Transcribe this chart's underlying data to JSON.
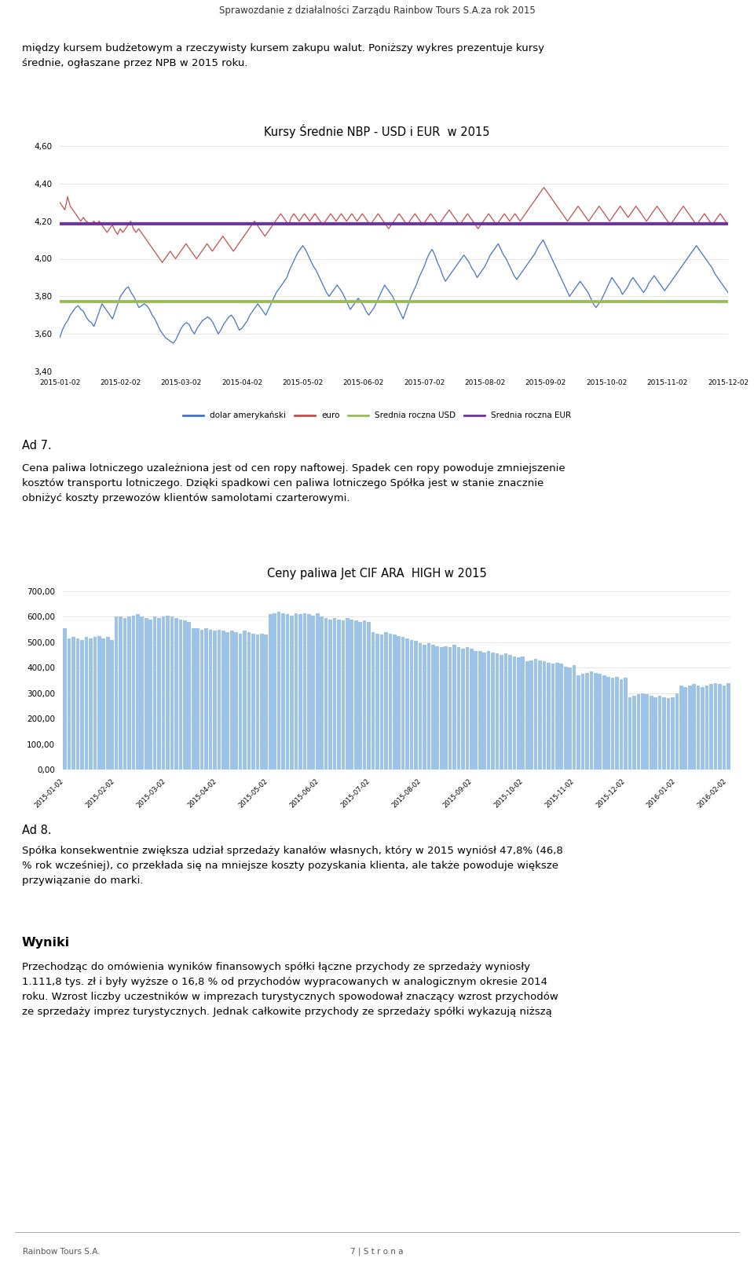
{
  "page_title": "Sprawozdanie z działalności Zarządu Rainbow Tours S.A.za rok 2015",
  "header_bar_color": "#7B2D2D",
  "text1": "między kursem budżetowym a rzeczywisty kursem zakupu walut. Poniższy wykres prezentuje kursy\nśrednie, ogłaszane przez NPB w 2015 roku.",
  "chart1_title": "Kursy Średnie NBP - USD i EUR  w 2015",
  "chart1_ylim": [
    3.4,
    4.6
  ],
  "chart1_yticks": [
    3.4,
    3.6,
    3.8,
    4.0,
    4.2,
    4.4,
    4.6
  ],
  "chart1_xlabels": [
    "2015-01-02",
    "2015-02-02",
    "2015-03-02",
    "2015-04-02",
    "2015-05-02",
    "2015-06-02",
    "2015-07-02",
    "2015-08-02",
    "2015-09-02",
    "2015-10-02",
    "2015-11-02",
    "2015-12-02"
  ],
  "usd_color": "#4472C4",
  "eur_color": "#C0504D",
  "usd_avg_color": "#9BBB59",
  "eur_avg_color": "#7030A0",
  "usd_avg": 3.773,
  "eur_avg": 4.184,
  "usd_values": [
    3.58,
    3.62,
    3.65,
    3.67,
    3.7,
    3.72,
    3.74,
    3.75,
    3.73,
    3.72,
    3.69,
    3.67,
    3.66,
    3.64,
    3.68,
    3.72,
    3.76,
    3.74,
    3.72,
    3.7,
    3.68,
    3.72,
    3.76,
    3.8,
    3.82,
    3.84,
    3.85,
    3.82,
    3.8,
    3.77,
    3.74,
    3.75,
    3.76,
    3.75,
    3.73,
    3.7,
    3.68,
    3.65,
    3.62,
    3.6,
    3.58,
    3.57,
    3.56,
    3.55,
    3.57,
    3.6,
    3.63,
    3.65,
    3.66,
    3.65,
    3.62,
    3.6,
    3.63,
    3.65,
    3.67,
    3.68,
    3.69,
    3.68,
    3.66,
    3.63,
    3.6,
    3.62,
    3.65,
    3.67,
    3.69,
    3.7,
    3.68,
    3.65,
    3.62,
    3.63,
    3.65,
    3.67,
    3.7,
    3.72,
    3.74,
    3.76,
    3.74,
    3.72,
    3.7,
    3.73,
    3.76,
    3.79,
    3.82,
    3.84,
    3.86,
    3.88,
    3.9,
    3.94,
    3.97,
    4.0,
    4.03,
    4.05,
    4.07,
    4.05,
    4.02,
    3.99,
    3.96,
    3.94,
    3.91,
    3.88,
    3.85,
    3.82,
    3.8,
    3.82,
    3.84,
    3.86,
    3.84,
    3.82,
    3.79,
    3.76,
    3.73,
    3.75,
    3.77,
    3.79,
    3.77,
    3.75,
    3.72,
    3.7,
    3.72,
    3.74,
    3.77,
    3.8,
    3.83,
    3.86,
    3.84,
    3.82,
    3.8,
    3.77,
    3.74,
    3.71,
    3.68,
    3.72,
    3.76,
    3.8,
    3.83,
    3.86,
    3.9,
    3.93,
    3.96,
    4.0,
    4.03,
    4.05,
    4.02,
    3.98,
    3.95,
    3.91,
    3.88,
    3.9,
    3.92,
    3.94,
    3.96,
    3.98,
    4.0,
    4.02,
    4.0,
    3.98,
    3.95,
    3.93,
    3.9,
    3.92,
    3.94,
    3.96,
    3.99,
    4.02,
    4.04,
    4.06,
    4.08,
    4.05,
    4.02,
    4.0,
    3.97,
    3.94,
    3.91,
    3.89,
    3.91,
    3.93,
    3.95,
    3.97,
    3.99,
    4.01,
    4.03,
    4.06,
    4.08,
    4.1,
    4.07,
    4.04,
    4.01,
    3.98,
    3.95,
    3.92,
    3.89,
    3.86,
    3.83,
    3.8,
    3.82,
    3.84,
    3.86,
    3.88,
    3.86,
    3.84,
    3.82,
    3.79,
    3.76,
    3.74,
    3.76,
    3.78,
    3.81,
    3.84,
    3.87,
    3.9,
    3.88,
    3.86,
    3.84,
    3.81,
    3.83,
    3.85,
    3.88,
    3.9,
    3.88,
    3.86,
    3.84,
    3.82,
    3.84,
    3.87,
    3.89,
    3.91,
    3.89,
    3.87,
    3.85,
    3.83,
    3.85,
    3.87,
    3.89,
    3.91,
    3.93,
    3.95,
    3.97,
    3.99,
    4.01,
    4.03,
    4.05,
    4.07,
    4.05,
    4.03,
    4.01,
    3.99,
    3.97,
    3.95,
    3.92,
    3.9,
    3.88,
    3.86,
    3.84,
    3.82
  ],
  "eur_values": [
    4.3,
    4.28,
    4.26,
    4.33,
    4.28,
    4.26,
    4.24,
    4.22,
    4.2,
    4.22,
    4.2,
    4.19,
    4.18,
    4.2,
    4.18,
    4.2,
    4.18,
    4.16,
    4.14,
    4.16,
    4.18,
    4.15,
    4.13,
    4.16,
    4.14,
    4.16,
    4.18,
    4.2,
    4.16,
    4.14,
    4.16,
    4.14,
    4.12,
    4.1,
    4.08,
    4.06,
    4.04,
    4.02,
    4.0,
    3.98,
    4.0,
    4.02,
    4.04,
    4.02,
    4.0,
    4.02,
    4.04,
    4.06,
    4.08,
    4.06,
    4.04,
    4.02,
    4.0,
    4.02,
    4.04,
    4.06,
    4.08,
    4.06,
    4.04,
    4.06,
    4.08,
    4.1,
    4.12,
    4.1,
    4.08,
    4.06,
    4.04,
    4.06,
    4.08,
    4.1,
    4.12,
    4.14,
    4.16,
    4.18,
    4.2,
    4.18,
    4.16,
    4.14,
    4.12,
    4.14,
    4.16,
    4.18,
    4.2,
    4.22,
    4.24,
    4.22,
    4.2,
    4.18,
    4.22,
    4.24,
    4.22,
    4.2,
    4.22,
    4.24,
    4.22,
    4.2,
    4.22,
    4.24,
    4.22,
    4.2,
    4.18,
    4.2,
    4.22,
    4.24,
    4.22,
    4.2,
    4.22,
    4.24,
    4.22,
    4.2,
    4.22,
    4.24,
    4.22,
    4.2,
    4.22,
    4.24,
    4.22,
    4.2,
    4.18,
    4.2,
    4.22,
    4.24,
    4.22,
    4.2,
    4.18,
    4.16,
    4.18,
    4.2,
    4.22,
    4.24,
    4.22,
    4.2,
    4.18,
    4.2,
    4.22,
    4.24,
    4.22,
    4.2,
    4.18,
    4.2,
    4.22,
    4.24,
    4.22,
    4.2,
    4.18,
    4.2,
    4.22,
    4.24,
    4.26,
    4.24,
    4.22,
    4.2,
    4.18,
    4.2,
    4.22,
    4.24,
    4.22,
    4.2,
    4.18,
    4.16,
    4.18,
    4.2,
    4.22,
    4.24,
    4.22,
    4.2,
    4.18,
    4.2,
    4.22,
    4.24,
    4.22,
    4.2,
    4.22,
    4.24,
    4.22,
    4.2,
    4.22,
    4.24,
    4.26,
    4.28,
    4.3,
    4.32,
    4.34,
    4.36,
    4.38,
    4.36,
    4.34,
    4.32,
    4.3,
    4.28,
    4.26,
    4.24,
    4.22,
    4.2,
    4.22,
    4.24,
    4.26,
    4.28,
    4.26,
    4.24,
    4.22,
    4.2,
    4.22,
    4.24,
    4.26,
    4.28,
    4.26,
    4.24,
    4.22,
    4.2,
    4.22,
    4.24,
    4.26,
    4.28,
    4.26,
    4.24,
    4.22,
    4.24,
    4.26,
    4.28,
    4.26,
    4.24,
    4.22,
    4.2,
    4.22,
    4.24,
    4.26,
    4.28,
    4.26,
    4.24,
    4.22,
    4.2,
    4.18,
    4.2,
    4.22,
    4.24,
    4.26,
    4.28,
    4.26,
    4.24,
    4.22,
    4.2,
    4.18,
    4.2,
    4.22,
    4.24,
    4.22,
    4.2,
    4.18,
    4.2,
    4.22,
    4.24,
    4.22,
    4.2,
    4.18
  ],
  "legend1": [
    "dolar amerykański",
    "euro",
    "Srednia roczna USD",
    "Srednia roczna EUR"
  ],
  "ad7_text": "Ad 7.",
  "text2": "Cena paliwa lotniczego uzależniona jest od cen ropy naftowej. Spadek cen ropy powoduje zmniejszenie\nkosztów transportu lotniczego. Dzięki spadkowi cen paliwa lotniczego Spółka jest w stanie znacznie\nobniżyć koszty przewozów klientów samolotami czarterowymi.",
  "chart2_title": "Ceny paliwa Jet CIF ARA  HIGH w 2015",
  "chart2_ylim": [
    0,
    700
  ],
  "chart2_yticks": [
    0,
    100,
    200,
    300,
    400,
    500,
    600,
    700
  ],
  "chart2_xlabels": [
    "2015-01-02",
    "2015-02-02",
    "2015-03-02",
    "2015-04-02",
    "2015-05-02",
    "2015-06-02",
    "2015-07-02",
    "2015-08-02",
    "2015-09-02",
    "2015-10-02",
    "2015-11-02",
    "2015-12-02",
    "2016-01-02",
    "2016-02-02"
  ],
  "bar_color": "#9DC3E6",
  "bar_values": [
    555,
    515,
    520,
    515,
    510,
    520,
    515,
    520,
    525,
    515,
    520,
    510,
    600,
    600,
    595,
    600,
    605,
    610,
    600,
    595,
    590,
    600,
    595,
    600,
    605,
    600,
    595,
    590,
    585,
    580,
    555,
    555,
    550,
    555,
    550,
    545,
    550,
    545,
    540,
    545,
    540,
    535,
    545,
    540,
    535,
    530,
    535,
    530,
    610,
    615,
    620,
    615,
    610,
    605,
    615,
    610,
    615,
    610,
    605,
    615,
    600,
    595,
    590,
    595,
    590,
    585,
    595,
    590,
    585,
    580,
    585,
    580,
    540,
    535,
    530,
    540,
    535,
    530,
    525,
    520,
    515,
    510,
    505,
    495,
    490,
    495,
    490,
    485,
    480,
    485,
    480,
    490,
    480,
    475,
    480,
    475,
    465,
    465,
    460,
    465,
    460,
    455,
    450,
    455,
    450,
    445,
    440,
    445,
    425,
    430,
    435,
    430,
    425,
    420,
    415,
    420,
    415,
    405,
    400,
    410,
    370,
    375,
    380,
    385,
    380,
    375,
    370,
    365,
    360,
    365,
    355,
    360,
    285,
    290,
    295,
    300,
    295,
    290,
    285,
    290,
    285,
    280,
    285,
    300,
    330,
    325,
    330,
    335,
    330,
    325,
    330,
    335,
    340,
    335,
    330,
    340
  ],
  "ad8_text": "Ad 8.",
  "text3": "Spółka konsekwentnie zwiększa udział sprzedaży kanałów własnych, który w 2015 wyniósł 47,8% (46,8\n% rok wcześniej), co przekłada się na mniejsze koszty pozyskania klienta, ale także powoduje większe\nprzywiązanie do marki.",
  "wyniki_title": "Wyniki",
  "text4": "Przechodząc do omówienia wyników finansowych spółki łączne przychody ze sprzedaży wyniosły\n1.111,8 tys. zł i były wyższe o 16,8 % od przychodów wypracowanych w analogicznym okresie 2014\nroku. Wzrost liczby uczestników w imprezach turystycznych spowodował znaczący wzrost przychodów\nze sprzedaży imprez turystycznych. Jednak całkowite przychody ze sprzedaży spółki wykazują niższą",
  "footer_left": "Rainbow Tours S.A.",
  "footer_right": "7 | S t r o n a",
  "bg_color": "#FFFFFF",
  "text_color": "#000000"
}
